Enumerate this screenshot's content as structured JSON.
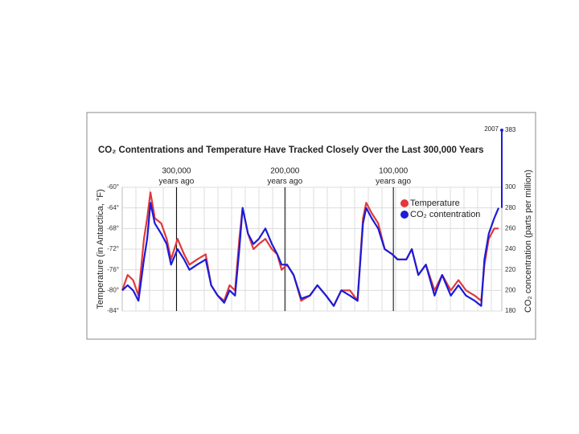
{
  "chart_data": {
    "type": "line",
    "title": "CO₂ Contentrations and Temperature Have Tracked Closely Over the Last 300,000 Years",
    "y_label": "Temperature (in Antarctica, °F)",
    "y2_label": "CO₂ concentration (parts per million)",
    "xlim": [
      350000,
      0
    ],
    "ylim": [
      -84,
      -60
    ],
    "yticks": [
      {
        "value": -60,
        "label": "-60°"
      },
      {
        "value": -64,
        "label": "-64°"
      },
      {
        "value": -68,
        "label": "-68°"
      },
      {
        "value": -72,
        "label": "-72°"
      },
      {
        "value": -76,
        "label": "-76°"
      },
      {
        "value": -80,
        "label": "-80°"
      },
      {
        "value": -84,
        "label": "-84°"
      }
    ],
    "y2lim": [
      180,
      300
    ],
    "y2ticks": [
      180,
      200,
      220,
      240,
      260,
      280,
      300
    ],
    "grid": true,
    "legend": "upper right",
    "annotations": [
      {
        "x": 300000,
        "label": "300,000",
        "sublabel": "years ago"
      },
      {
        "x": 200000,
        "label": "200,000",
        "sublabel": "years ago"
      },
      {
        "x": 100000,
        "label": "100,000",
        "sublabel": "years ago"
      }
    ],
    "end_note": {
      "year": "2007",
      "value": 383
    },
    "x": [
      350000,
      345000,
      340000,
      335000,
      330000,
      327000,
      324000,
      320000,
      314000,
      309000,
      305000,
      299000,
      293000,
      288000,
      281000,
      273000,
      268000,
      262000,
      256000,
      251000,
      246000,
      242000,
      239000,
      234000,
      229000,
      224000,
      218000,
      212000,
      207000,
      203000,
      198000,
      192000,
      185000,
      177000,
      170000,
      162000,
      155000,
      148000,
      140000,
      133000,
      128000,
      125000,
      120000,
      114000,
      108000,
      101000,
      96000,
      88000,
      83000,
      77000,
      70000,
      62000,
      55000,
      47000,
      40000,
      33000,
      25000,
      19000,
      16000,
      12000,
      7000,
      3000
    ],
    "series": [
      {
        "name": "Temperature",
        "color": "#e0393c",
        "axis": "y",
        "values": [
          -80,
          -77,
          -78,
          -81,
          -70,
          -66,
          -61,
          -66,
          -67,
          -70,
          -74,
          -70,
          -73,
          -75,
          -74,
          -73,
          -79,
          -81,
          -82,
          -79,
          -80,
          -70,
          -64,
          -69,
          -72,
          -71,
          -70,
          -72,
          -73,
          -76,
          -75,
          -77,
          -82,
          -81,
          -79,
          -81,
          -83,
          -80,
          -80,
          -82,
          -66,
          -63,
          -65,
          -67,
          -72,
          -73,
          -74,
          -74,
          -72,
          -77,
          -75,
          -80,
          -77,
          -80,
          -78,
          -80,
          -81,
          -82,
          -75,
          -70,
          -68,
          -68
        ]
      },
      {
        "name": "CO₂ contentration",
        "color": "#1c1cd8",
        "axis": "y2",
        "values": [
          200,
          205,
          200,
          190,
          230,
          250,
          285,
          265,
          255,
          245,
          225,
          240,
          230,
          220,
          225,
          230,
          205,
          195,
          188,
          200,
          195,
          240,
          280,
          255,
          245,
          250,
          260,
          245,
          235,
          225,
          225,
          215,
          192,
          195,
          205,
          195,
          185,
          200,
          195,
          190,
          265,
          280,
          270,
          260,
          240,
          235,
          230,
          230,
          240,
          215,
          225,
          195,
          215,
          195,
          205,
          195,
          190,
          185,
          230,
          255,
          270,
          280
        ]
      }
    ]
  }
}
